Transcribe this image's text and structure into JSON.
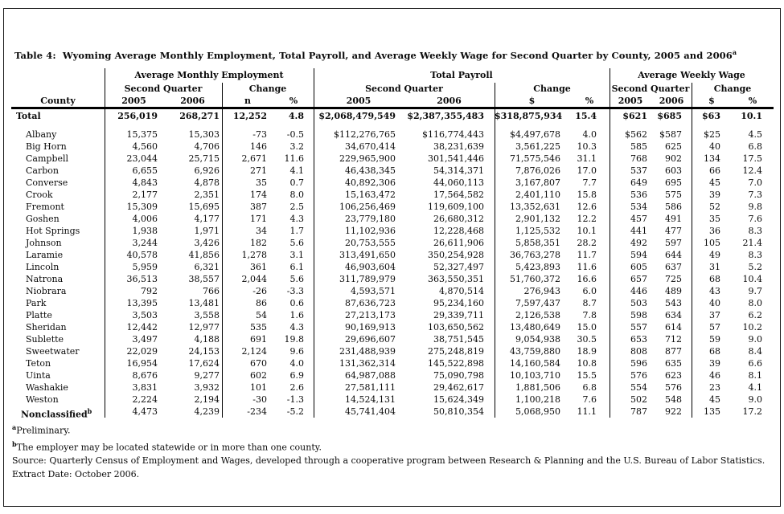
{
  "title": {
    "text": "Table 4:  Wyoming Average Monthly Employment, Total Payroll, and Average Weekly Wage for Second Quarter by County, 2005 and 2006",
    "sup": "a"
  },
  "table": {
    "county_label": "County",
    "groups": [
      {
        "label": "Average Monthly Employment",
        "sq": "Second Quarter",
        "change": "Change"
      },
      {
        "label": "Total Payroll",
        "sq": "Second Quarter",
        "change": "Change"
      },
      {
        "label": "Average Weekly Wage",
        "sq": "Second Quarter",
        "change": "Change"
      }
    ],
    "col_labels": [
      "2005",
      "2006",
      "n",
      "%",
      "2005",
      "2006",
      "$",
      "%",
      "2005",
      "2006",
      "$",
      "%"
    ],
    "total": {
      "label": "Total",
      "values": [
        "256,019",
        "268,271",
        "12,252",
        "4.8",
        "$2,068,479,549",
        "$2,387,355,483",
        "$318,875,934",
        "15.4",
        "$621",
        "$685",
        "$63",
        "10.1"
      ]
    },
    "rows": [
      {
        "county": "Albany",
        "values": [
          "15,375",
          "15,303",
          "-73",
          "-0.5",
          "$112,276,765",
          "$116,774,443",
          "$4,497,678",
          "4.0",
          "$562",
          "$587",
          "$25",
          "4.5"
        ]
      },
      {
        "county": "Big Horn",
        "values": [
          "4,560",
          "4,706",
          "146",
          "3.2",
          "34,670,414",
          "38,231,639",
          "3,561,225",
          "10.3",
          "585",
          "625",
          "40",
          "6.8"
        ]
      },
      {
        "county": "Campbell",
        "values": [
          "23,044",
          "25,715",
          "2,671",
          "11.6",
          "229,965,900",
          "301,541,446",
          "71,575,546",
          "31.1",
          "768",
          "902",
          "134",
          "17.5"
        ]
      },
      {
        "county": "Carbon",
        "values": [
          "6,655",
          "6,926",
          "271",
          "4.1",
          "46,438,345",
          "54,314,371",
          "7,876,026",
          "17.0",
          "537",
          "603",
          "66",
          "12.4"
        ]
      },
      {
        "county": "Converse",
        "values": [
          "4,843",
          "4,878",
          "35",
          "0.7",
          "40,892,306",
          "44,060,113",
          "3,167,807",
          "7.7",
          "649",
          "695",
          "45",
          "7.0"
        ]
      },
      {
        "county": "Crook",
        "values": [
          "2,177",
          "2,351",
          "174",
          "8.0",
          "15,163,472",
          "17,564,582",
          "2,401,110",
          "15.8",
          "536",
          "575",
          "39",
          "7.3"
        ]
      },
      {
        "county": "Fremont",
        "values": [
          "15,309",
          "15,695",
          "387",
          "2.5",
          "106,256,469",
          "119,609,100",
          "13,352,631",
          "12.6",
          "534",
          "586",
          "52",
          "9.8"
        ]
      },
      {
        "county": "Goshen",
        "values": [
          "4,006",
          "4,177",
          "171",
          "4.3",
          "23,779,180",
          "26,680,312",
          "2,901,132",
          "12.2",
          "457",
          "491",
          "35",
          "7.6"
        ]
      },
      {
        "county": "Hot Springs",
        "values": [
          "1,938",
          "1,971",
          "34",
          "1.7",
          "11,102,936",
          "12,228,468",
          "1,125,532",
          "10.1",
          "441",
          "477",
          "36",
          "8.3"
        ]
      },
      {
        "county": "Johnson",
        "values": [
          "3,244",
          "3,426",
          "182",
          "5.6",
          "20,753,555",
          "26,611,906",
          "5,858,351",
          "28.2",
          "492",
          "597",
          "105",
          "21.4"
        ]
      },
      {
        "county": "Laramie",
        "values": [
          "40,578",
          "41,856",
          "1,278",
          "3.1",
          "313,491,650",
          "350,254,928",
          "36,763,278",
          "11.7",
          "594",
          "644",
          "49",
          "8.3"
        ]
      },
      {
        "county": "Lincoln",
        "values": [
          "5,959",
          "6,321",
          "361",
          "6.1",
          "46,903,604",
          "52,327,497",
          "5,423,893",
          "11.6",
          "605",
          "637",
          "31",
          "5.2"
        ]
      },
      {
        "county": "Natrona",
        "values": [
          "36,513",
          "38,557",
          "2,044",
          "5.6",
          "311,789,979",
          "363,550,351",
          "51,760,372",
          "16.6",
          "657",
          "725",
          "68",
          "10.4"
        ]
      },
      {
        "county": "Niobrara",
        "values": [
          "792",
          "766",
          "-26",
          "-3.3",
          "4,593,571",
          "4,870,514",
          "276,943",
          "6.0",
          "446",
          "489",
          "43",
          "9.7"
        ]
      },
      {
        "county": "Park",
        "values": [
          "13,395",
          "13,481",
          "86",
          "0.6",
          "87,636,723",
          "95,234,160",
          "7,597,437",
          "8.7",
          "503",
          "543",
          "40",
          "8.0"
        ]
      },
      {
        "county": "Platte",
        "values": [
          "3,503",
          "3,558",
          "54",
          "1.6",
          "27,213,173",
          "29,339,711",
          "2,126,538",
          "7.8",
          "598",
          "634",
          "37",
          "6.2"
        ]
      },
      {
        "county": "Sheridan",
        "values": [
          "12,442",
          "12,977",
          "535",
          "4.3",
          "90,169,913",
          "103,650,562",
          "13,480,649",
          "15.0",
          "557",
          "614",
          "57",
          "10.2"
        ]
      },
      {
        "county": "Sublette",
        "values": [
          "3,497",
          "4,188",
          "691",
          "19.8",
          "29,696,607",
          "38,751,545",
          "9,054,938",
          "30.5",
          "653",
          "712",
          "59",
          "9.0"
        ]
      },
      {
        "county": "Sweetwater",
        "values": [
          "22,029",
          "24,153",
          "2,124",
          "9.6",
          "231,488,939",
          "275,248,819",
          "43,759,880",
          "18.9",
          "808",
          "877",
          "68",
          "8.4"
        ]
      },
      {
        "county": "Teton",
        "values": [
          "16,954",
          "17,624",
          "670",
          "4.0",
          "131,362,314",
          "145,522,898",
          "14,160,584",
          "10.8",
          "596",
          "635",
          "39",
          "6.6"
        ]
      },
      {
        "county": "Uinta",
        "values": [
          "8,676",
          "9,277",
          "602",
          "6.9",
          "64,987,088",
          "75,090,798",
          "10,103,710",
          "15.5",
          "576",
          "623",
          "46",
          "8.1"
        ]
      },
      {
        "county": "Washakie",
        "values": [
          "3,831",
          "3,932",
          "101",
          "2.6",
          "27,581,111",
          "29,462,617",
          "1,881,506",
          "6.8",
          "554",
          "576",
          "23",
          "4.1"
        ]
      },
      {
        "county": "Weston",
        "values": [
          "2,224",
          "2,194",
          "-30",
          "-1.3",
          "14,524,131",
          "15,624,349",
          "1,100,218",
          "7.6",
          "502",
          "548",
          "45",
          "9.0"
        ]
      },
      {
        "county": "Nonclassified",
        "sup": "b",
        "bold": true,
        "values": [
          "4,473",
          "4,239",
          "-234",
          "-5.2",
          "45,741,404",
          "50,810,354",
          "5,068,950",
          "11.1",
          "787",
          "922",
          "135",
          "17.2"
        ]
      }
    ]
  },
  "footnotes": [
    {
      "sup": "a",
      "text": "Preliminary."
    },
    {
      "sup": "b",
      "text": "The employer may be located statewide or in more than one county."
    },
    {
      "text": "Source: Quarterly Census of Employment and Wages, developed through a cooperative program between Research & Planning and the U.S. Bureau of Labor Statistics."
    },
    {
      "text": "Extract Date: October 2006."
    }
  ]
}
